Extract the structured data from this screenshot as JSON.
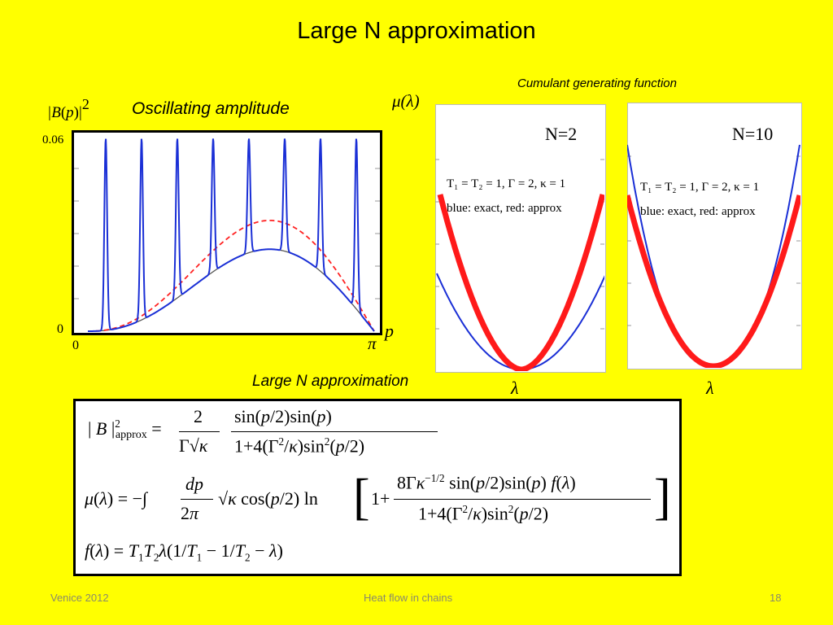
{
  "slide": {
    "title": "Large N approximation",
    "footer_left": "Venice 2012",
    "footer_center": "Heat flow in chains",
    "page_number": "18"
  },
  "left_plot": {
    "y_label": "|B(p)|2",
    "caption": "Oscillating amplitude",
    "y_top_tick": "0.06",
    "y_zero_tick": "0",
    "x_zero_tick": "0",
    "x_pi_tick": "π",
    "x_var": "p"
  },
  "right_plots": {
    "header": "Cumulant generating function",
    "y_label": "μ(λ)",
    "panels": [
      {
        "title": "N=2",
        "params": "T₁ = T₂ = 1, Γ = 2, κ = 1",
        "legend": "blue: exact, red: approx",
        "x_label": "λ"
      },
      {
        "title": "N=10",
        "params": "T₁ = T₂ = 1, Γ = 2, κ = 1",
        "legend": "blue: exact, red: approx",
        "x_label": "λ"
      }
    ]
  },
  "formulas": {
    "header": "Large N approximation",
    "line1": "|B|²approx = 2/(Γ√κ) · sin(p/2)sin(p) / (1+4(Γ²/κ)sin²(p/2))",
    "line2": "μ(λ) = −∫ dp/2π √κ cos(p/2) ln[1 + 8Γκ^(−1/2) sin(p/2)sin(p) f(λ) / (1+4(Γ²/κ)sin²(p/2))]",
    "line3": "f(λ) = T1T2λ(1/T1 − 1/T2 − λ)"
  },
  "colors": {
    "background": "#ffff00",
    "exact": "#1a2fd6",
    "approx": "#ff1a1a",
    "envelope": "#555555"
  }
}
